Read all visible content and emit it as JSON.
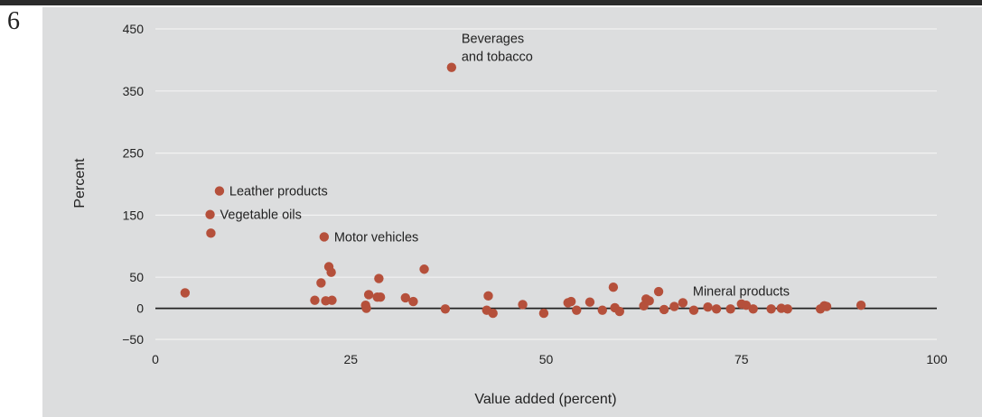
{
  "page": {
    "number": "6"
  },
  "colors": {
    "point": "#b5503b",
    "grid": "#f2f2f2",
    "zero_line": "#222222",
    "panel": "#dcddde"
  },
  "chart_data": {
    "type": "scatter",
    "title": "",
    "xlabel": "Value added (percent)",
    "ylabel": "Percent",
    "xlim": [
      0,
      100
    ],
    "ylim": [
      -50,
      450
    ],
    "x_ticks": [
      0,
      25,
      50,
      75,
      100
    ],
    "x_tick_labels": [
      "0",
      "25",
      "50",
      "75",
      "100"
    ],
    "y_ticks": [
      -50,
      0,
      50,
      150,
      250,
      350,
      450
    ],
    "y_tick_labels": [
      "−50",
      "0",
      "50",
      "150",
      "250",
      "350",
      "450"
    ],
    "grid": true,
    "points": [
      {
        "x": 3.8,
        "y": 25
      },
      {
        "x": 7.0,
        "y": 151
      },
      {
        "x": 7.1,
        "y": 121
      },
      {
        "x": 8.2,
        "y": 189
      },
      {
        "x": 20.4,
        "y": 13
      },
      {
        "x": 21.2,
        "y": 41
      },
      {
        "x": 21.6,
        "y": 115
      },
      {
        "x": 21.8,
        "y": 12
      },
      {
        "x": 22.2,
        "y": 67
      },
      {
        "x": 22.5,
        "y": 58
      },
      {
        "x": 22.6,
        "y": 13
      },
      {
        "x": 26.9,
        "y": 5
      },
      {
        "x": 27.0,
        "y": 0
      },
      {
        "x": 27.3,
        "y": 22
      },
      {
        "x": 28.4,
        "y": 18
      },
      {
        "x": 28.6,
        "y": 48
      },
      {
        "x": 28.8,
        "y": 18
      },
      {
        "x": 32.0,
        "y": 17
      },
      {
        "x": 33.0,
        "y": 11
      },
      {
        "x": 34.4,
        "y": 63
      },
      {
        "x": 37.1,
        "y": -1
      },
      {
        "x": 37.9,
        "y": 388
      },
      {
        "x": 42.4,
        "y": -3
      },
      {
        "x": 42.6,
        "y": 20
      },
      {
        "x": 43.2,
        "y": -8
      },
      {
        "x": 47.0,
        "y": 6
      },
      {
        "x": 49.7,
        "y": -8
      },
      {
        "x": 52.8,
        "y": 9
      },
      {
        "x": 53.2,
        "y": 11
      },
      {
        "x": 53.9,
        "y": -3
      },
      {
        "x": 55.6,
        "y": 10
      },
      {
        "x": 57.2,
        "y": -3
      },
      {
        "x": 58.6,
        "y": 34
      },
      {
        "x": 58.8,
        "y": 1
      },
      {
        "x": 59.4,
        "y": -5
      },
      {
        "x": 62.5,
        "y": 4
      },
      {
        "x": 62.8,
        "y": 15
      },
      {
        "x": 63.2,
        "y": 12
      },
      {
        "x": 64.4,
        "y": 27
      },
      {
        "x": 65.1,
        "y": -2
      },
      {
        "x": 66.4,
        "y": 3
      },
      {
        "x": 67.5,
        "y": 9
      },
      {
        "x": 68.9,
        "y": -3
      },
      {
        "x": 70.7,
        "y": 2
      },
      {
        "x": 71.8,
        "y": -1
      },
      {
        "x": 73.6,
        "y": -1
      },
      {
        "x": 75.0,
        "y": 7
      },
      {
        "x": 75.6,
        "y": 5
      },
      {
        "x": 76.5,
        "y": -1
      },
      {
        "x": 78.8,
        "y": -1
      },
      {
        "x": 80.1,
        "y": 0
      },
      {
        "x": 80.9,
        "y": -1
      },
      {
        "x": 85.1,
        "y": -1
      },
      {
        "x": 85.6,
        "y": 4
      },
      {
        "x": 85.9,
        "y": 3
      },
      {
        "x": 90.3,
        "y": 5
      }
    ],
    "annotations": [
      {
        "lines": [
          "Beverages",
          "and tobacco"
        ],
        "x": 37.9,
        "y": 388,
        "placement": "right-above"
      },
      {
        "lines": [
          "Leather products"
        ],
        "x": 8.2,
        "y": 189,
        "placement": "right"
      },
      {
        "lines": [
          "Vegetable oils"
        ],
        "x": 7.0,
        "y": 151,
        "placement": "right"
      },
      {
        "lines": [
          "Motor vehicles"
        ],
        "x": 21.6,
        "y": 115,
        "placement": "right"
      },
      {
        "lines": [
          "Mineral products"
        ],
        "x": 67.5,
        "y": 9,
        "placement": "right-above"
      }
    ]
  }
}
